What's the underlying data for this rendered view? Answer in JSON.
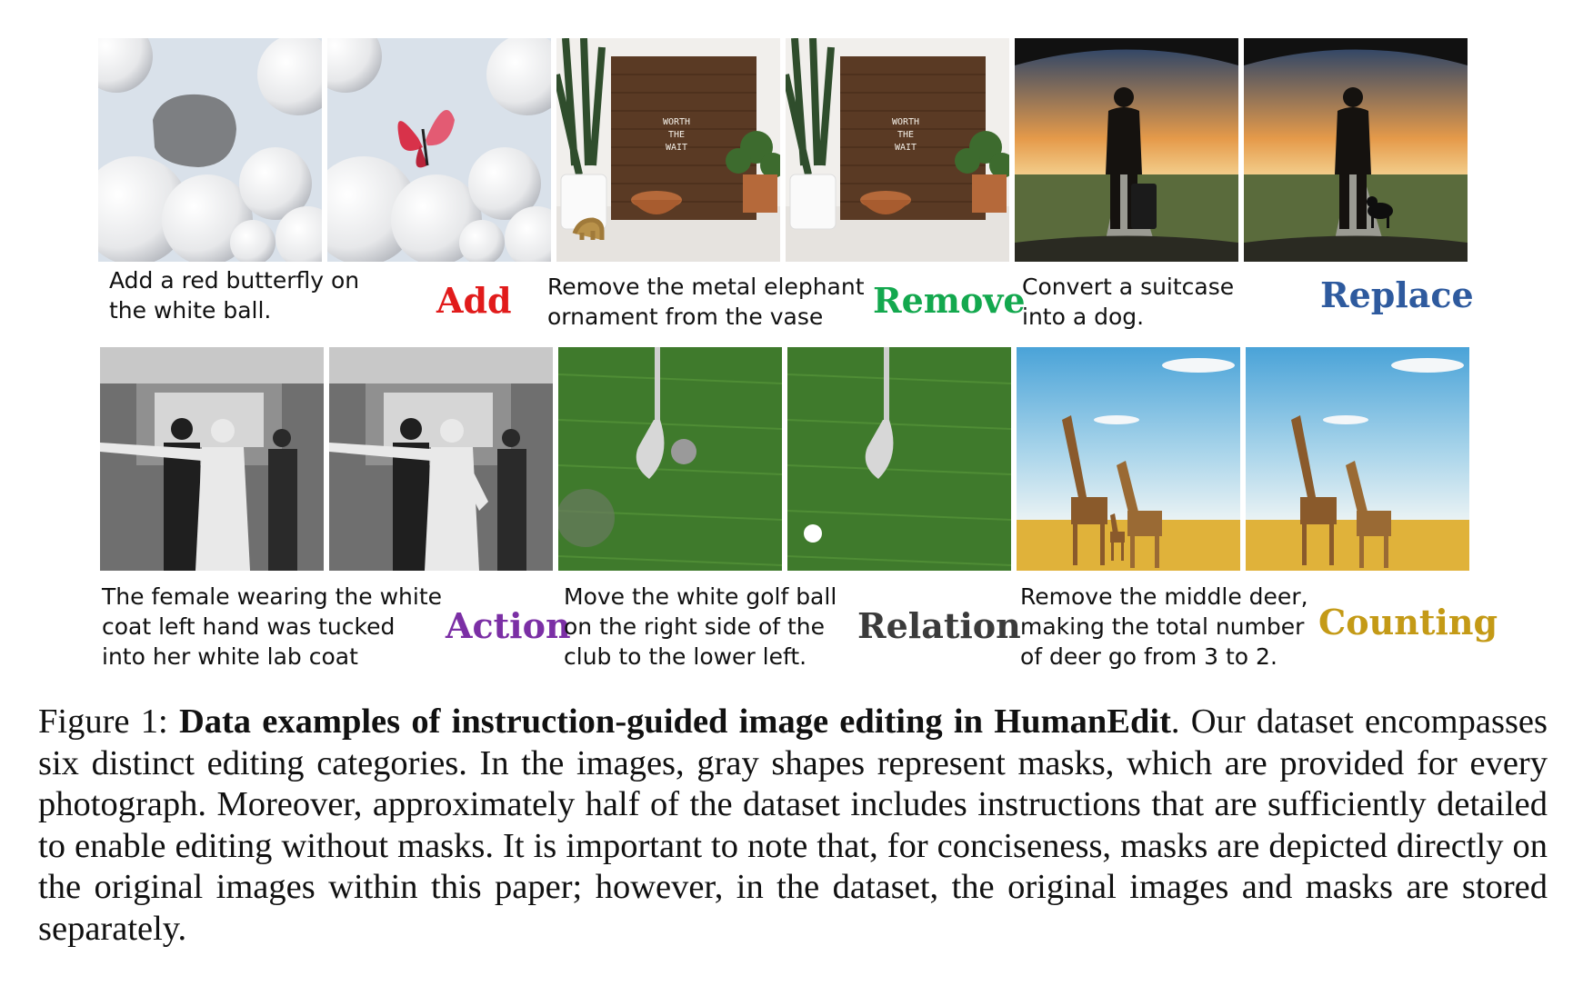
{
  "examples": [
    {
      "category": "Add",
      "color": "#e11b1b",
      "instruction": "Add a red butterfly on\nthe white ball."
    },
    {
      "category": "Remove",
      "color": "#13a84e",
      "instruction": "Remove the metal elephant\nornament from the vase"
    },
    {
      "category": "Replace",
      "color": "#2e5a9e",
      "instruction": "Convert a suitcase\ninto a dog."
    },
    {
      "category": "Action",
      "color": "#7b2fa5",
      "instruction": "The female wearing the white\ncoat left hand was tucked\ninto her white lab coat"
    },
    {
      "category": "Relation",
      "color": "#3b3b3b",
      "instruction": "Move the white golf ball\non the right side of the\nclub to the lower left."
    },
    {
      "category": "Counting",
      "color": "#c49a16",
      "instruction": "Remove the middle deer,\nmaking the total number\nof deer go from 3 to 2."
    }
  ],
  "sign_text": [
    "WORTH",
    "THE",
    "WAIT"
  ],
  "caption": {
    "label": "Figure 1:",
    "title": "Data examples of instruction-guided image editing in HumanEdit",
    "body": ". Our dataset encompasses six distinct editing categories. In the images, gray shapes represent masks, which are provided for every photograph. Moreover, approximately half of the dataset includes instructions that are sufficiently detailed to enable editing without masks. It is important to note that, for conciseness, masks are depicted directly on the original images within this paper; however, in the dataset, the original images and masks are stored separately."
  }
}
